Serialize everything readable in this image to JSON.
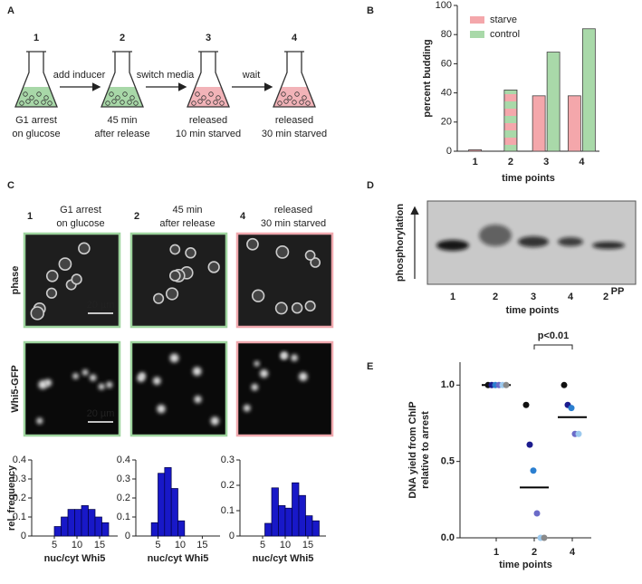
{
  "panels": {
    "labels": [
      "A",
      "B",
      "C",
      "D",
      "E"
    ]
  },
  "panel_a": {
    "steps": [
      {
        "number": "1",
        "caption": [
          "G1 arrest",
          "on glucose"
        ],
        "color": "#a8d8a8"
      },
      {
        "number": "2",
        "caption": [
          "45 min",
          "after release"
        ],
        "color": "#a8d8a8"
      },
      {
        "number": "3",
        "caption": [
          "released",
          "10 min starved"
        ],
        "color": "#f2b3b8"
      },
      {
        "number": "4",
        "caption": [
          "released",
          "30 min starved"
        ],
        "color": "#f2b3b8"
      }
    ],
    "arrows": [
      "add inducer",
      "switch media",
      "wait"
    ]
  },
  "panel_c": {
    "columns": [
      {
        "number": "1",
        "title": [
          "G1 arrest",
          "on glucose"
        ],
        "border": "#9ed49e"
      },
      {
        "number": "2",
        "title": [
          "45 min",
          "after release"
        ],
        "border": "#9ed49e"
      },
      {
        "number": "4",
        "title": [
          "released",
          "30 min starved"
        ],
        "border": "#f0a8ae"
      }
    ],
    "rows": [
      "phase",
      "Whi5-GFP"
    ],
    "scale_bar": "20 µm"
  },
  "panel_d": {
    "y_label": "phosphorylation",
    "lanes": [
      "1",
      "2",
      "3",
      "4"
    ],
    "pp_lane": {
      "label": "2",
      "superscript": "PP"
    },
    "x_label": "time points"
  },
  "chart_data": [
    {
      "type": "bar",
      "y_label": "percent budding",
      "x_label": "time points",
      "categories": [
        "1",
        "2",
        "3",
        "4"
      ],
      "series": [
        {
          "name": "starve",
          "color": "#f4a7ab",
          "values": [
            1,
            42,
            38,
            38
          ]
        },
        {
          "name": "control",
          "color": "#a9d9a9",
          "values": [
            null,
            42,
            68,
            84
          ]
        }
      ],
      "ylim": [
        0,
        100
      ],
      "yticks": [
        0,
        20,
        40,
        60,
        80,
        100
      ],
      "legend": "upper left"
    },
    {
      "type": "histogram",
      "y_label": "rel. frequency",
      "x_label": "nuc/cyt Whi5",
      "bins": [
        5,
        6.5,
        8,
        9.5,
        11,
        12.5,
        14,
        15.5,
        17
      ],
      "values": [
        0.05,
        0.1,
        0.14,
        0.14,
        0.16,
        0.14,
        0.1,
        0.07
      ],
      "color": "#1818c8",
      "xlim": [
        0,
        19
      ],
      "ylim": [
        0,
        0.4
      ],
      "xticks": [
        5,
        10,
        15
      ],
      "yticks": [
        0,
        0.1,
        0.2,
        0.3,
        0.4
      ]
    },
    {
      "type": "histogram",
      "x_label": "nuc/cyt Whi5",
      "bins": [
        3.5,
        5,
        6.5,
        8,
        9.5,
        11
      ],
      "values": [
        0.07,
        0.33,
        0.36,
        0.25,
        0.08
      ],
      "color": "#1818c8",
      "xlim": [
        0,
        19
      ],
      "ylim": [
        0,
        0.4
      ],
      "xticks": [
        5,
        10,
        15
      ],
      "yticks": [
        0,
        0.1,
        0.2,
        0.3,
        0.4
      ]
    },
    {
      "type": "histogram",
      "x_label": "nuc/cyt Whi5",
      "bins": [
        5.5,
        7,
        8.5,
        10,
        11.5,
        13,
        14.5,
        16,
        17.5
      ],
      "values": [
        0.05,
        0.19,
        0.12,
        0.11,
        0.21,
        0.16,
        0.08,
        0.06
      ],
      "color": "#1818c8",
      "xlim": [
        0,
        19
      ],
      "ylim": [
        0,
        0.3
      ],
      "xticks": [
        5,
        10,
        15
      ],
      "yticks": [
        0,
        0.1,
        0.2,
        0.3
      ]
    },
    {
      "type": "scatter",
      "y_label": "DNA yield from ChIP",
      "y_sublabel": "relative to arrest",
      "x_label": "time points",
      "categories": [
        "1",
        "2",
        "4"
      ],
      "series": [
        {
          "color": "#111111",
          "values": [
            1,
            0.87,
            1
          ]
        },
        {
          "color": "#1c1c8e",
          "values": [
            1,
            0.61,
            0.87
          ]
        },
        {
          "color": "#2b7fd0",
          "values": [
            1,
            0.44,
            0.85
          ]
        },
        {
          "color": "#6b6bc8",
          "values": [
            1,
            0.16,
            0.68
          ]
        },
        {
          "color": "#9cc9ee",
          "values": [
            1,
            0,
            0.68
          ]
        },
        {
          "color": "#8a8a8a",
          "values": [
            1,
            0,
            null
          ]
        }
      ],
      "medians": [
        1,
        0.33,
        0.79
      ],
      "ylim": [
        0,
        1.15
      ],
      "yticks": [
        {
          "value": 0,
          "label": "0.0"
        },
        {
          "value": 0.5,
          "label": "0.5"
        },
        {
          "value": 1,
          "label": "1.0"
        }
      ],
      "annotation": "p<0.01"
    }
  ]
}
